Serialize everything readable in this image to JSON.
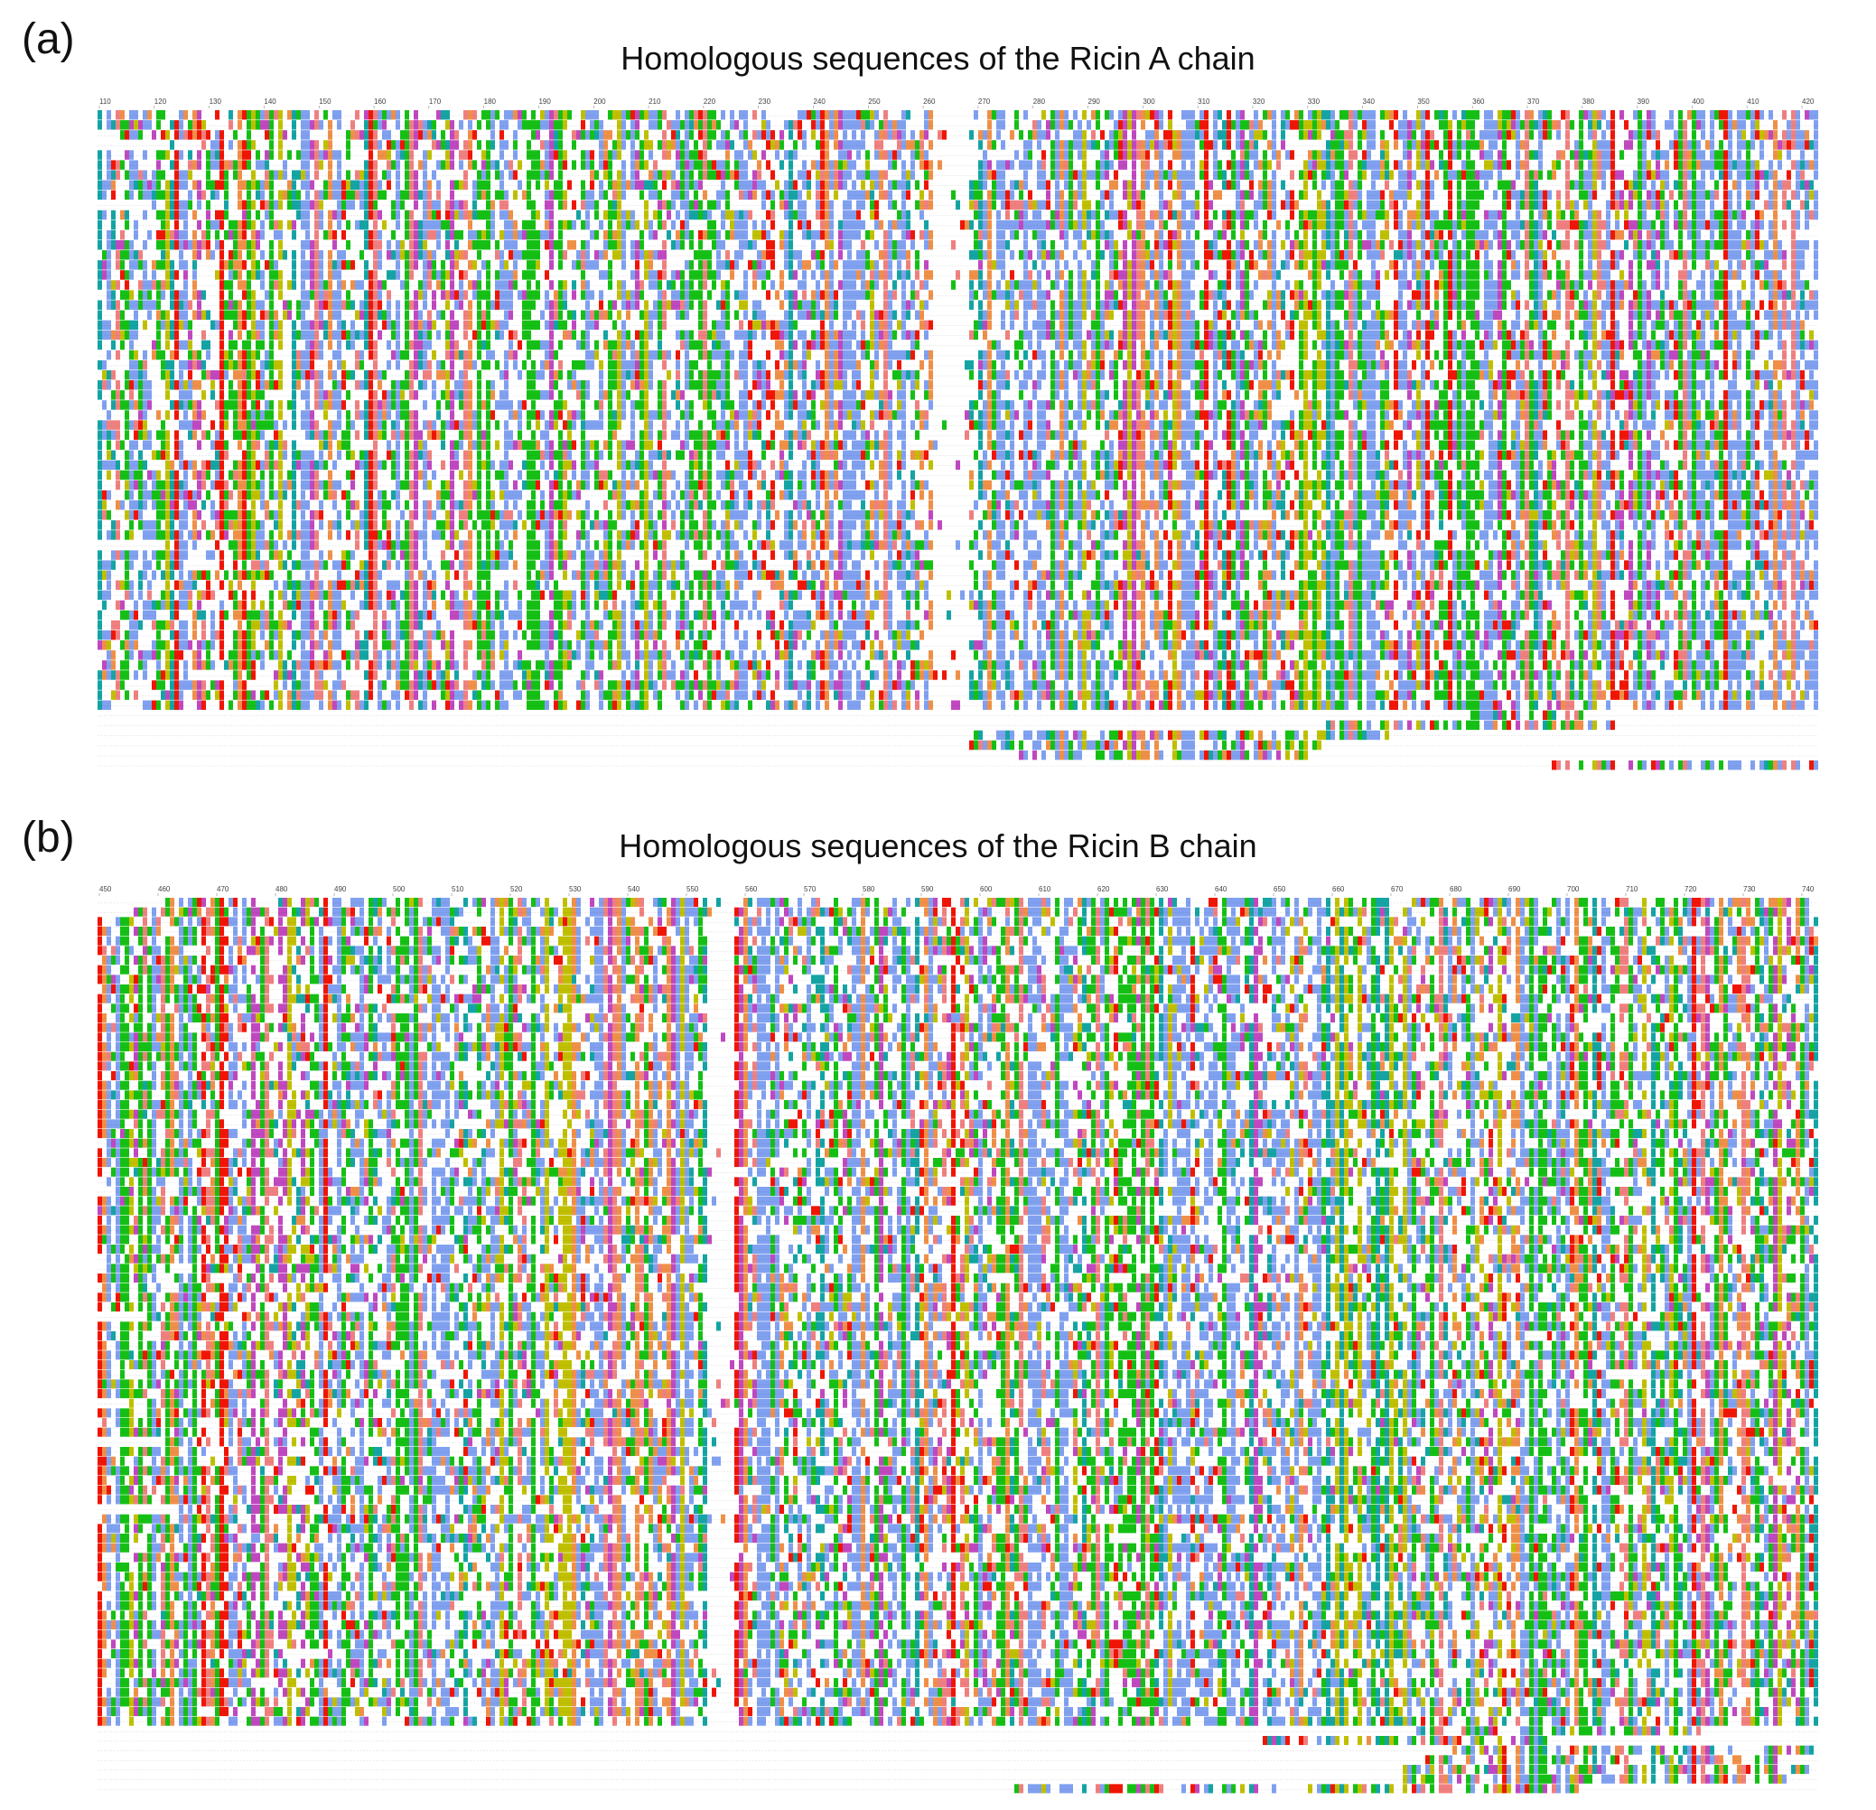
{
  "panels": [
    {
      "id": "a",
      "label": "(a)",
      "title": "Homologous sequences of the Ricin A chain",
      "ruler_ticks": [
        "110",
        "120",
        "130",
        "140",
        "150",
        "160",
        "170",
        "180",
        "190",
        "200",
        "210",
        "220",
        "230",
        "240",
        "250",
        "260",
        "270",
        "280",
        "290",
        "300",
        "310",
        "320",
        "330",
        "340",
        "350",
        "360",
        "370",
        "380",
        "390",
        "400",
        "410",
        "420"
      ],
      "row_count": 66
    },
    {
      "id": "b",
      "label": "(b)",
      "title": "Homologous sequences of the Ricin B chain",
      "ruler_ticks": [
        "450",
        "460",
        "470",
        "480",
        "490",
        "500",
        "510",
        "520",
        "530",
        "540",
        "550",
        "560",
        "570",
        "580",
        "590",
        "600",
        "610",
        "620",
        "630",
        "640",
        "650",
        "660",
        "670",
        "680",
        "690",
        "700",
        "710",
        "720",
        "730",
        "740"
      ],
      "row_count": 93
    }
  ],
  "residue_colors": {
    "hydrophobic": "#80a0f0",
    "polar": "#15c015",
    "positive": "#f01505",
    "negative": "#c048c0",
    "cysteine": "#f08080",
    "glycine": "#f09048",
    "proline": "#c0c000",
    "aromatic": "#15a4a4",
    "gap": "#ffffff"
  }
}
